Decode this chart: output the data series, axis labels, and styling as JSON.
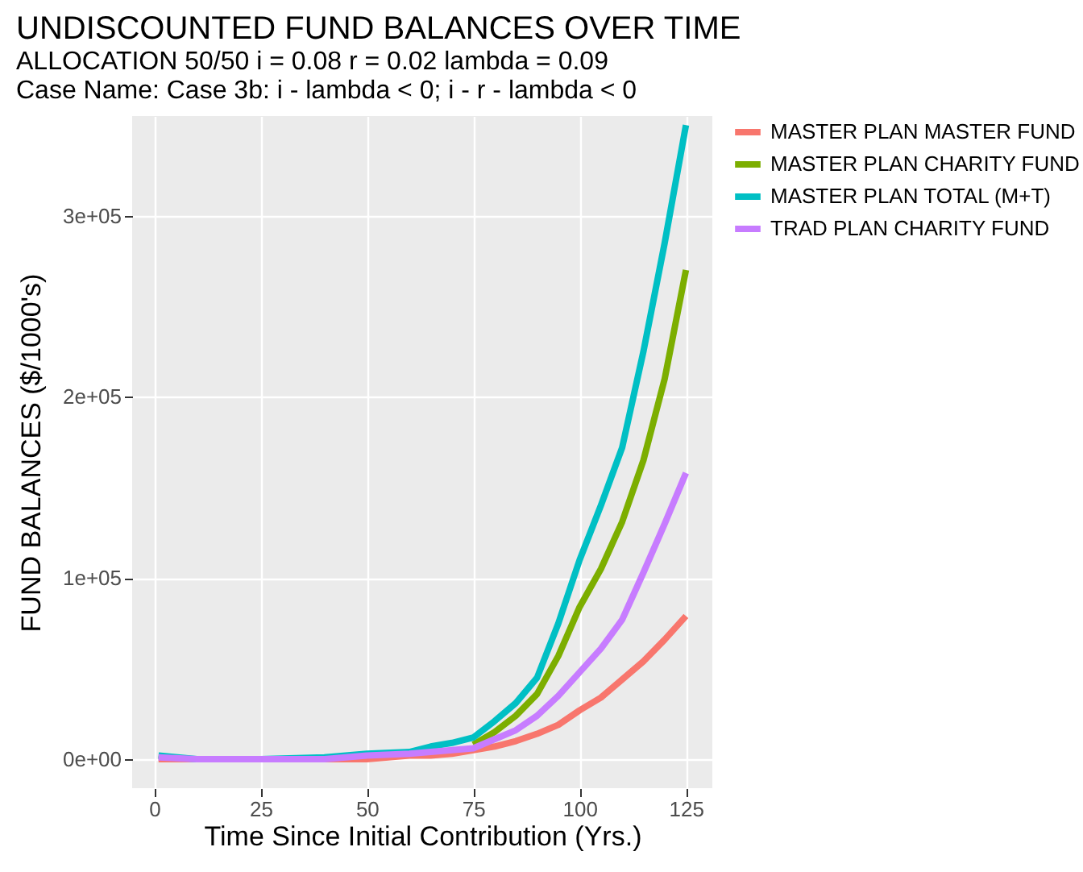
{
  "chart_data": {
    "type": "line",
    "title": "UNDISCOUNTED FUND BALANCES OVER TIME",
    "subtitle": "ALLOCATION 50/50       i =  0.08  r =  0.02  lambda =  0.09",
    "annotations": [
      "Case Name:  Case 3b:  i - lambda  <  0;  i - r - lambda < 0"
    ],
    "xlabel": "Time Since Initial Contribution (Yrs.)",
    "ylabel": "FUND BALANCES   ($/1000's)",
    "x": [
      1,
      10,
      25,
      40,
      50,
      60,
      65,
      70,
      75,
      80,
      85,
      90,
      95,
      100,
      105,
      110,
      115,
      120,
      125
    ],
    "series": [
      {
        "name": "MASTER PLAN MASTER FUND",
        "color": "#f8766d",
        "values": [
          0,
          0,
          0,
          0,
          0,
          2000,
          2000,
          3000,
          5000,
          7000,
          10000,
          14000,
          19000,
          27000,
          34000,
          44000,
          54000,
          66000,
          79000
        ]
      },
      {
        "name": "MASTER PLAN CHARITY FUND",
        "color": "#7cae00",
        "values": [
          null,
          null,
          null,
          null,
          null,
          null,
          null,
          null,
          8000,
          15000,
          24000,
          36000,
          57000,
          84000,
          105000,
          131000,
          165000,
          210000,
          270000
        ]
      },
      {
        "name": "MASTER PLAN TOTAL (M+T)",
        "color": "#00bfc4",
        "values": [
          2000,
          0,
          0,
          1000,
          3000,
          4000,
          7000,
          9000,
          12000,
          21000,
          31000,
          45000,
          75000,
          110000,
          140000,
          172000,
          225000,
          285000,
          350000
        ]
      },
      {
        "name": "TRAD PLAN CHARITY FUND",
        "color": "#c77cff",
        "values": [
          1000,
          0,
          0,
          0,
          2000,
          3000,
          4000,
          5000,
          6000,
          11000,
          16000,
          24000,
          35000,
          48000,
          61000,
          77000,
          103000,
          130000,
          158000
        ]
      }
    ],
    "xlim": [
      -5.2,
      131.2
    ],
    "xticks": [
      0,
      25,
      50,
      75,
      100,
      125
    ],
    "ylim": [
      -16000,
      355000
    ],
    "yticks": [
      {
        "value": 0,
        "label": "0e+00"
      },
      {
        "value": 100000,
        "label": "1e+05"
      },
      {
        "value": 200000,
        "label": "2e+05"
      },
      {
        "value": 300000,
        "label": "3e+05"
      }
    ],
    "grid": true,
    "legend": "right",
    "line_style": "solid",
    "marker": "none"
  }
}
